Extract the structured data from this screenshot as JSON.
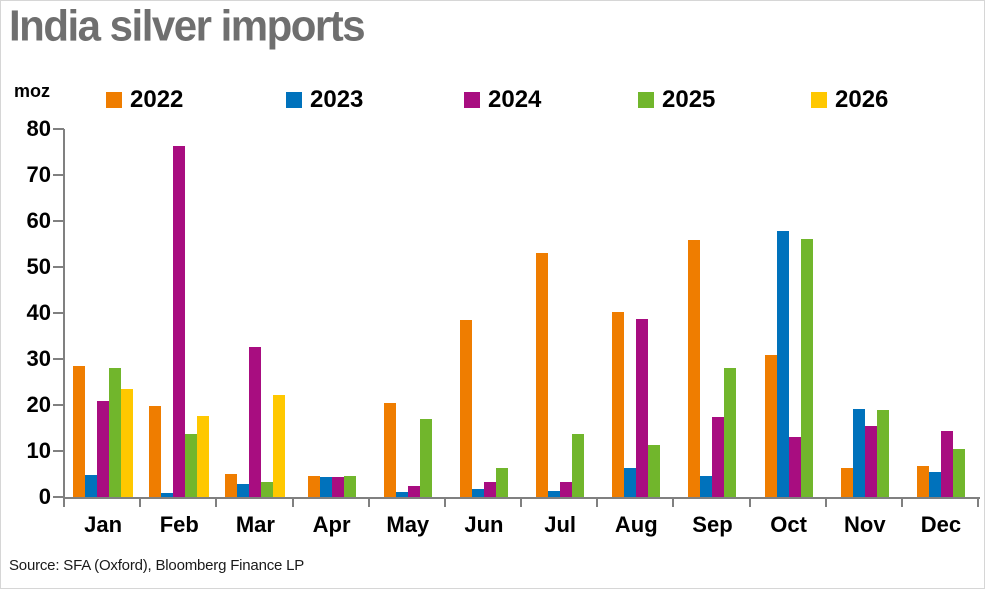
{
  "header": {
    "title": "India silver imports"
  },
  "footer": {
    "source": "Source: SFA (Oxford), Bloomberg Finance LP"
  },
  "chart_data": {
    "type": "bar",
    "title": "India silver imports",
    "unit_label": "moz",
    "categories": [
      "Jan",
      "Feb",
      "Mar",
      "Apr",
      "May",
      "Jun",
      "Jul",
      "Aug",
      "Sep",
      "Oct",
      "Nov",
      "Dec"
    ],
    "series": [
      {
        "name": "2022",
        "color": "#EF7D00",
        "values": [
          28.4,
          19.8,
          4.9,
          4.6,
          20.4,
          38.5,
          53.0,
          40.3,
          55.8,
          30.8,
          6.2,
          6.8
        ]
      },
      {
        "name": "2023",
        "color": "#0072BC",
        "values": [
          4.7,
          0.8,
          2.9,
          4.4,
          1.0,
          1.8,
          1.4,
          6.4,
          4.6,
          57.8,
          19.2,
          5.5
        ]
      },
      {
        "name": "2024",
        "color": "#A80D80",
        "values": [
          20.9,
          76.2,
          32.7,
          4.3,
          2.5,
          3.3,
          3.3,
          38.8,
          17.3,
          13.1,
          15.5,
          14.4
        ]
      },
      {
        "name": "2025",
        "color": "#71B62C",
        "values": [
          28.1,
          13.7,
          3.3,
          4.6,
          17.0,
          6.2,
          13.8,
          11.2,
          28.0,
          56.0,
          19.0,
          10.5
        ]
      },
      {
        "name": "2026",
        "color": "#FFC800",
        "values": [
          23.5,
          17.7,
          22.2,
          null,
          null,
          null,
          null,
          null,
          null,
          null,
          null,
          null
        ]
      }
    ],
    "ylim": [
      0,
      80
    ],
    "yticks": [
      0,
      10,
      20,
      30,
      40,
      50,
      60,
      70,
      80
    ],
    "grid": false,
    "legend_position": "top",
    "axis_color": "#808080",
    "title_color": "#6f6f6f"
  }
}
